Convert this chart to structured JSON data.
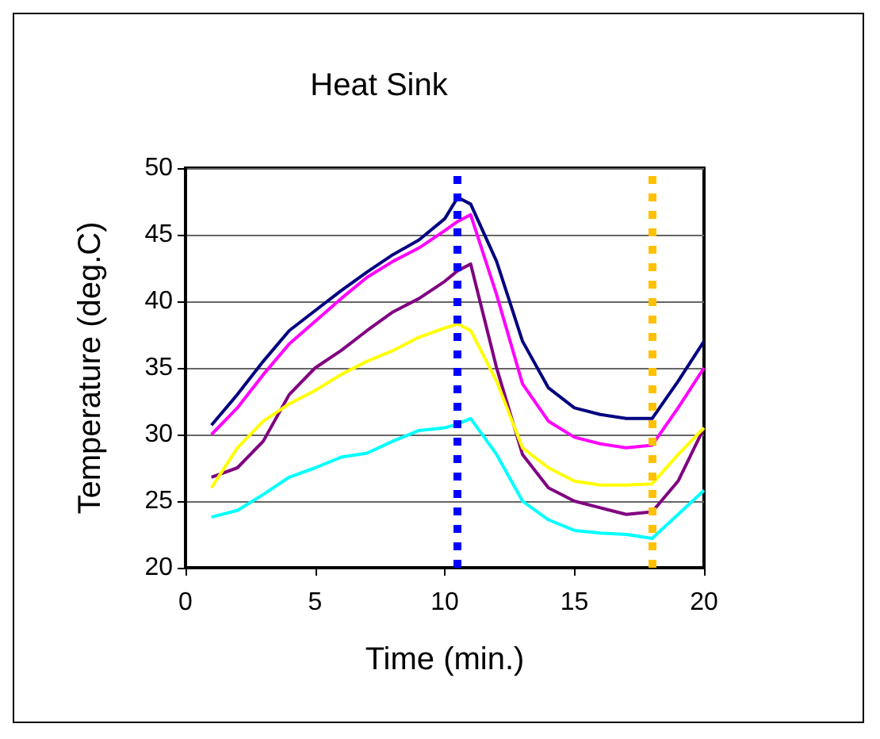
{
  "chart_data": {
    "type": "line",
    "title": "Heat Sink",
    "xlabel": "Time (min.)",
    "ylabel": "Temperature (deg.C)",
    "x": [
      1,
      2,
      3,
      4,
      5,
      6,
      7,
      8,
      9,
      10,
      10.5,
      11,
      12,
      13,
      14,
      15,
      16,
      17,
      18,
      19,
      20
    ],
    "series": [
      {
        "color": "#000080",
        "values": [
          30.7,
          33,
          35.5,
          37.8,
          39.3,
          40.8,
          42.2,
          43.5,
          44.6,
          46.2,
          47.8,
          47.3,
          43,
          37,
          33.5,
          32,
          31.5,
          31.2,
          31.2,
          34,
          37
        ]
      },
      {
        "color": "#ff00ff",
        "values": [
          30,
          32,
          34.5,
          36.8,
          38.5,
          40.2,
          41.8,
          43,
          44,
          45.3,
          46,
          46.5,
          40.5,
          33.8,
          31,
          29.8,
          29.3,
          29,
          29.2,
          32,
          35
        ]
      },
      {
        "color": "#800080",
        "values": [
          26.8,
          27.5,
          29.5,
          33,
          35,
          36.3,
          37.8,
          39.2,
          40.2,
          41.5,
          42.3,
          42.8,
          35,
          28.5,
          26,
          25,
          24.5,
          24,
          24.2,
          26.5,
          30.5
        ]
      },
      {
        "color": "#ffff00",
        "values": [
          26,
          29,
          31,
          32.3,
          33.3,
          34.5,
          35.5,
          36.3,
          37.3,
          38,
          38.3,
          37.8,
          34,
          29,
          27.5,
          26.5,
          26.2,
          26.2,
          26.3,
          28.5,
          30.5
        ]
      },
      {
        "color": "#00ffff",
        "values": [
          23.8,
          24.3,
          25.5,
          26.8,
          27.5,
          28.3,
          28.6,
          29.5,
          30.3,
          30.5,
          30.8,
          31.2,
          28.5,
          25,
          23.6,
          22.8,
          22.6,
          22.5,
          22.2,
          24,
          25.8
        ]
      }
    ],
    "xlim": [
      0,
      20
    ],
    "xticks": [
      0,
      5,
      10,
      15,
      20
    ],
    "ylim": [
      20,
      50
    ],
    "yticks": [
      20,
      25,
      30,
      35,
      40,
      45,
      50
    ],
    "grid": "y",
    "marker": "none",
    "line_style": "solid",
    "ref_lines": [
      {
        "axis": "x",
        "value": 10.5,
        "color": "#0000ff",
        "line_style": "dotted"
      },
      {
        "axis": "x",
        "value": 18,
        "color": "#ffc000",
        "line_style": "dotted"
      }
    ]
  }
}
